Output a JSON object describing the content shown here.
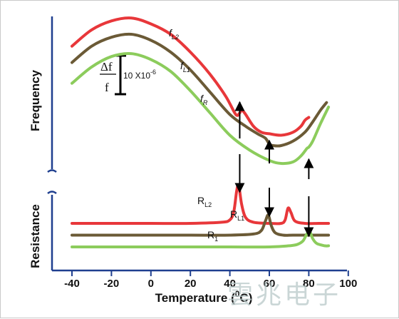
{
  "chart_data": {
    "type": "line",
    "xlabel_main": "Temperature (",
    "xlabel_sup": "0",
    "xlabel_tail": "C)",
    "ylabel_top": "Frequency",
    "ylabel_bottom": "Resistance",
    "x_ticks": [
      "-40",
      "-20",
      "0",
      "20",
      "40",
      "60",
      "80",
      "100"
    ],
    "xlim": [
      -45,
      100
    ],
    "grid": false,
    "scale_bar": {
      "numerator": "Δf",
      "denominator": "f",
      "text": "10 X10",
      "exponent": "-6"
    },
    "colors": {
      "red": "#e8373a",
      "brown": "#6b5a36",
      "green": "#8ccc5c",
      "axis": "#1f3f8f"
    },
    "frequency_series": [
      {
        "name": "fL2",
        "label_main": "f",
        "label_sub": "L2",
        "color": "#e8373a",
        "x": [
          -40,
          -30,
          -20,
          -10,
          0,
          10,
          20,
          30,
          38,
          43,
          45,
          46,
          48,
          52,
          56,
          60,
          66,
          72,
          76,
          78,
          80
        ],
        "y": [
          79,
          90,
          96,
          98,
          94,
          87,
          75,
          60,
          45,
          33,
          34,
          36,
          33,
          25,
          21,
          20,
          19,
          21,
          25,
          29,
          31
        ]
      },
      {
        "name": "fL1",
        "label_main": "f",
        "label_sub": "L1",
        "color": "#6b5a36",
        "x": [
          -40,
          -30,
          -20,
          -10,
          0,
          10,
          20,
          30,
          40,
          48,
          54,
          58,
          60,
          62,
          66,
          72,
          78,
          82,
          86,
          89
        ],
        "y": [
          68,
          79,
          85,
          87,
          83,
          75,
          63,
          48,
          33,
          25,
          20,
          17,
          13,
          12,
          12,
          15,
          21,
          28,
          36,
          41
        ]
      },
      {
        "name": "fR",
        "label_main": "f",
        "label_sub": "R",
        "color": "#8ccc5c",
        "x": [
          -40,
          -30,
          -20,
          -10,
          0,
          10,
          20,
          30,
          40,
          50,
          60,
          66,
          72,
          76,
          79,
          80,
          82,
          86,
          90
        ],
        "y": [
          54,
          65,
          72,
          74,
          70,
          62,
          49,
          34,
          19,
          9,
          2,
          0,
          1,
          5,
          10,
          11,
          15,
          27,
          38
        ]
      }
    ],
    "resistance_series": [
      {
        "name": "RL2",
        "label_main": "R",
        "label_sub": "L2",
        "color": "#e8373a",
        "x": [
          -40,
          -20,
          0,
          20,
          36,
          40,
          42,
          43.5,
          44.5,
          46,
          48,
          52,
          60,
          66,
          68,
          69.5,
          71,
          73,
          78,
          85,
          90
        ],
        "y": [
          20,
          20,
          20,
          20,
          21,
          23,
          30,
          48,
          52,
          36,
          25,
          21,
          20,
          20,
          23,
          33,
          29,
          22,
          20,
          20,
          20
        ]
      },
      {
        "name": "RL1",
        "label_main": "R",
        "label_sub": "L1",
        "color": "#6b5a36",
        "x": [
          -40,
          -20,
          0,
          20,
          40,
          52,
          56,
          58,
          59.5,
          61,
          63,
          67,
          72,
          80,
          90
        ],
        "y": [
          10,
          10,
          10,
          10,
          10,
          11,
          14,
          22,
          27,
          18,
          12,
          10,
          10,
          10,
          10
        ]
      },
      {
        "name": "R1",
        "label_main": "R",
        "label_sub": "1",
        "color": "#8ccc5c",
        "x": [
          -40,
          -20,
          0,
          20,
          40,
          60,
          70,
          74,
          77,
          79,
          80.5,
          82,
          84,
          88,
          90
        ],
        "y": [
          0,
          0,
          0,
          0,
          0,
          0,
          1,
          2,
          5,
          11,
          13,
          7,
          3,
          1,
          1
        ]
      }
    ],
    "arrows": [
      {
        "x": 45,
        "from": "fR-region",
        "to": "fL2-kink",
        "direction": "up"
      },
      {
        "x": 60,
        "from": "fR-region",
        "to": "fL1-kink",
        "direction": "up"
      },
      {
        "x": 80,
        "from": "R1-peak-region",
        "to": "fR-kink",
        "direction": "up"
      },
      {
        "x": 45,
        "from": "frequency-gap",
        "to": "RL2-peak",
        "direction": "down"
      },
      {
        "x": 60,
        "from": "frequency-gap",
        "to": "RL1-peak",
        "direction": "down"
      },
      {
        "x": 80,
        "from": "resistance-gap",
        "to": "R1-peak",
        "direction": "down"
      }
    ]
  },
  "watermark": "雲兆电子"
}
